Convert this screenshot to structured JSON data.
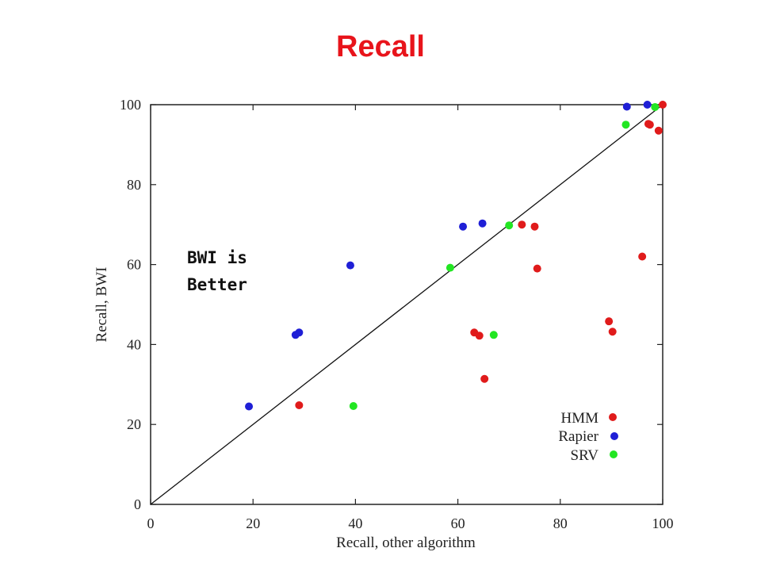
{
  "slide": {
    "title": "Recall"
  },
  "colors": {
    "title": "#e8141b",
    "HMM": "#e01b1b",
    "Rapier": "#1f1fd6",
    "SRV": "#22e622"
  },
  "chart_data": {
    "type": "scatter",
    "xlabel": "Recall, other algorithm",
    "ylabel": "Recall, BWI",
    "xlim": [
      0,
      100
    ],
    "ylim": [
      0,
      100
    ],
    "xticks": [
      0,
      20,
      40,
      60,
      80,
      100
    ],
    "yticks": [
      0,
      20,
      40,
      60,
      80,
      100
    ],
    "reference_line": {
      "x": [
        0,
        100
      ],
      "y": [
        0,
        100
      ]
    },
    "annotation": [
      "BWI is",
      "Better"
    ],
    "legend_position": "bottom-right",
    "series": [
      {
        "name": "HMM",
        "color": "#e01b1b",
        "points": [
          [
            29,
            24.8
          ],
          [
            63.2,
            43
          ],
          [
            64.2,
            42.2
          ],
          [
            65.2,
            31.4
          ],
          [
            72.5,
            70
          ],
          [
            75,
            69.5
          ],
          [
            75.5,
            59
          ],
          [
            89.5,
            45.8
          ],
          [
            90.2,
            43.2
          ],
          [
            96,
            62
          ],
          [
            97.2,
            95.2
          ],
          [
            97.5,
            95
          ],
          [
            99.2,
            93.5
          ],
          [
            100,
            100
          ]
        ]
      },
      {
        "name": "Rapier",
        "color": "#1f1fd6",
        "points": [
          [
            19.2,
            24.5
          ],
          [
            28.3,
            42.4
          ],
          [
            29,
            43
          ],
          [
            39,
            59.8
          ],
          [
            61,
            69.5
          ],
          [
            64.8,
            70.3
          ],
          [
            93,
            99.5
          ],
          [
            97,
            100
          ]
        ]
      },
      {
        "name": "SRV",
        "color": "#22e622",
        "points": [
          [
            39.6,
            24.6
          ],
          [
            58.5,
            59.2
          ],
          [
            67,
            42.4
          ],
          [
            70,
            69.8
          ],
          [
            92.8,
            95
          ],
          [
            98.5,
            99.4
          ]
        ]
      }
    ]
  }
}
